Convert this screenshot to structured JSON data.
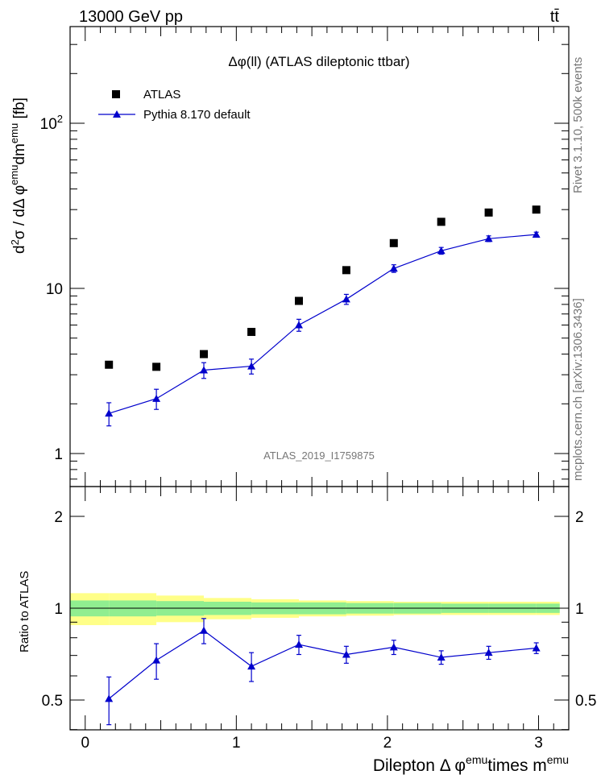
{
  "header": {
    "energy": "13000 GeV pp",
    "process": "tt̄",
    "side_top": "Rivet 3.1.10,  500k events",
    "side_bottom": "mcplots.cern.ch [arXiv:1306.3436]"
  },
  "main": {
    "title": "Δφ(ll) (ATLAS dileptonic ttbar)",
    "ylabel": "d²σ / dΔ φemu dmemu [fb]",
    "watermark": "ATLAS_2019_I1759875",
    "legend": {
      "data_label": "ATLAS",
      "mc_label": "Pythia 8.170 default"
    },
    "yticks": [
      {
        "label": "1",
        "v": 1
      },
      {
        "label": "10",
        "v": 10
      },
      {
        "label": "10",
        "sup": "2",
        "v": 100
      }
    ]
  },
  "ratio": {
    "ylabel": "Ratio to ATLAS",
    "yticks": [
      "0.5",
      "1",
      "2"
    ],
    "xlabel": "Dilepton Δ φemutimes memu",
    "xticks": [
      "0",
      "1",
      "2",
      "3"
    ]
  },
  "colors": {
    "data": "#000000",
    "mc": "#0000cc",
    "band_inner": "#90ee90",
    "band_outer": "#ffff88"
  },
  "chart_data": [
    {
      "type": "scatter",
      "title": "Δφ(ll) (ATLAS dileptonic ttbar)",
      "ylabel": "d²σ / dΔ φemu dmemu [fb]",
      "yscale": "log",
      "ylim": [
        0.6,
        400
      ],
      "xlim": [
        -0.1,
        3.2
      ],
      "x": [
        0.157,
        0.471,
        0.785,
        1.1,
        1.414,
        1.728,
        2.042,
        2.356,
        2.67,
        2.985
      ],
      "series": [
        {
          "name": "ATLAS",
          "marker": "square",
          "values": [
            3.45,
            3.35,
            4.0,
            5.45,
            8.4,
            12.9,
            18.8,
            25.3,
            28.8,
            30.0
          ]
        },
        {
          "name": "Pythia 8.170 default",
          "marker": "triangle",
          "line": true,
          "values": [
            1.75,
            2.15,
            3.2,
            3.38,
            6.0,
            8.6,
            13.2,
            16.9,
            20.0,
            21.2
          ],
          "err": [
            0.28,
            0.3,
            0.35,
            0.35,
            0.5,
            0.6,
            0.7,
            0.8,
            0.8,
            0.7
          ]
        }
      ],
      "legend": "top-left"
    },
    {
      "type": "scatter",
      "ylabel": "Ratio to ATLAS",
      "xlabel": "Dilepton Δ φemutimes memu",
      "yscale": "log",
      "ylim": [
        0.38,
        2.5
      ],
      "x": [
        0.157,
        0.471,
        0.785,
        1.1,
        1.414,
        1.728,
        2.042,
        2.356,
        2.67,
        2.985
      ],
      "series": [
        {
          "name": "Pythia 8.170 default",
          "values": [
            0.505,
            0.675,
            0.845,
            0.645,
            0.76,
            0.705,
            0.745,
            0.69,
            0.715,
            0.74
          ],
          "err": [
            0.09,
            0.09,
            0.08,
            0.07,
            0.055,
            0.045,
            0.04,
            0.035,
            0.035,
            0.03
          ]
        }
      ],
      "bands": {
        "edges": [
          -0.1,
          0.157,
          0.471,
          0.785,
          1.1,
          1.414,
          1.728,
          2.042,
          2.356,
          2.67,
          2.985,
          3.14
        ],
        "inner": [
          0.06,
          0.06,
          0.055,
          0.05,
          0.045,
          0.045,
          0.04,
          0.04,
          0.035,
          0.035,
          0.035
        ],
        "outer": [
          0.12,
          0.12,
          0.1,
          0.08,
          0.07,
          0.06,
          0.055,
          0.05,
          0.05,
          0.05,
          0.05
        ]
      }
    }
  ]
}
